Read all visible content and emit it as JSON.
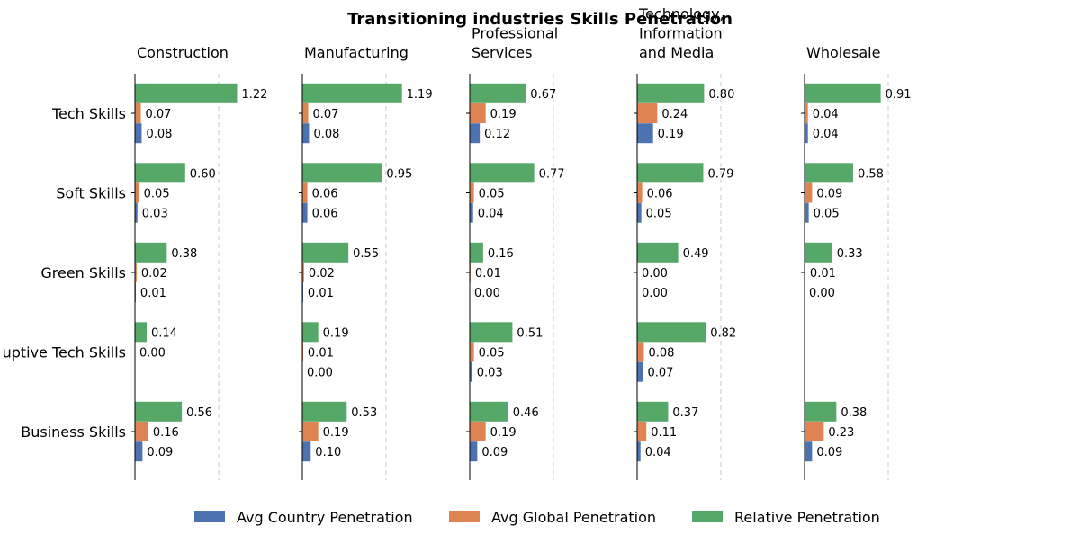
{
  "chart_data": {
    "type": "bar",
    "orientation": "horizontal",
    "title": "Transitioning industries Skills Penetration",
    "categories": [
      "Tech Skills",
      "Soft Skills",
      "Green Skills",
      "Disruptive Tech Skills",
      "Business Skills"
    ],
    "category_labels_shown": [
      "Tech Skills",
      "Soft Skills",
      "Green Skills",
      "uptive Tech Skills",
      "Business Skills"
    ],
    "series_meta": [
      {
        "name": "Avg Country Penetration",
        "color": "#4c72b0"
      },
      {
        "name": "Avg Global Penetration",
        "color": "#dd8452"
      },
      {
        "name": "Relative Penetration",
        "color": "#55a868"
      }
    ],
    "panels": [
      {
        "title_lines": [
          "Construction"
        ],
        "values": {
          "Avg Country Penetration": [
            0.08,
            0.03,
            0.01,
            null,
            0.09
          ],
          "Avg Global Penetration": [
            0.07,
            0.05,
            0.02,
            0.0,
            0.16
          ],
          "Relative Penetration": [
            1.22,
            0.6,
            0.38,
            0.14,
            0.56
          ]
        }
      },
      {
        "title_lines": [
          "Manufacturing"
        ],
        "values": {
          "Avg Country Penetration": [
            0.08,
            0.06,
            0.01,
            0.0,
            0.1
          ],
          "Avg Global Penetration": [
            0.07,
            0.06,
            0.02,
            0.01,
            0.19
          ],
          "Relative Penetration": [
            1.19,
            0.95,
            0.55,
            0.19,
            0.53
          ]
        }
      },
      {
        "title_lines": [
          "Professional",
          "Services"
        ],
        "values": {
          "Avg Country Penetration": [
            0.12,
            0.04,
            0.0,
            0.03,
            0.09
          ],
          "Avg Global Penetration": [
            0.19,
            0.05,
            0.01,
            0.05,
            0.19
          ],
          "Relative Penetration": [
            0.67,
            0.77,
            0.16,
            0.51,
            0.46
          ]
        }
      },
      {
        "title_lines": [
          "Technology,",
          "Information",
          "and Media"
        ],
        "values": {
          "Avg Country Penetration": [
            0.19,
            0.05,
            0.0,
            0.07,
            0.04
          ],
          "Avg Global Penetration": [
            0.24,
            0.06,
            0.0,
            0.08,
            0.11
          ],
          "Relative Penetration": [
            0.8,
            0.79,
            0.49,
            0.82,
            0.37
          ]
        }
      },
      {
        "title_lines": [
          "Wholesale"
        ],
        "values": {
          "Avg Country Penetration": [
            0.04,
            0.05,
            0.0,
            null,
            0.09
          ],
          "Avg Global Penetration": [
            0.04,
            0.09,
            0.01,
            null,
            0.23
          ],
          "Relative Penetration": [
            0.91,
            0.58,
            0.33,
            null,
            0.38
          ]
        }
      }
    ],
    "xlim": [
      0,
      1.6
    ],
    "reference_line": 1.0,
    "legend_position": "bottom-center",
    "grid": false
  }
}
